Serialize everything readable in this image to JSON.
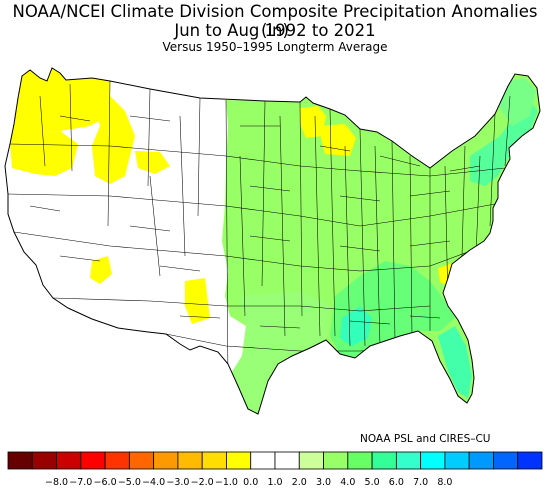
{
  "title_line1": "NOAA/NCEI Climate Division Composite Precipitation Anomalies (in)",
  "title_line2": "Jun to Aug 1992 to 2021",
  "title_line3": "Versus 1950–1995 Longterm Average",
  "credit": "NOAA PSL and CIRES–CU",
  "colors": {
    "no_data": "#ffffff",
    "outline": "#000000",
    "state_fill_white": "#ffffff",
    "dry_yellow": "#ffff00",
    "wet_green_1": "#ccff99",
    "wet_green_2": "#99ff66",
    "wet_green_3": "#66ff66",
    "wet_teal": "#33ffcc"
  },
  "map": {
    "region": "Contiguous United States climate divisions",
    "dry_areas_yellow": [
      "Pacific Northwest",
      "Idaho",
      "Arizona",
      "New Mexico",
      "Minnesota",
      "Wisconsin",
      "South Carolina"
    ],
    "wet_areas_green": [
      "Great Plains",
      "Midwest",
      "South",
      "Southeast",
      "Northeast"
    ],
    "wettest_areas_teal": [
      "Lower Mississippi Valley",
      "Florida",
      "Northern New England"
    ]
  },
  "legend": {
    "bins": [
      {
        "color": "#660000"
      },
      {
        "color": "#990000"
      },
      {
        "color": "#cc0000"
      },
      {
        "color": "#ff0000"
      },
      {
        "color": "#ff3300"
      },
      {
        "color": "#ff6600"
      },
      {
        "color": "#ff9900"
      },
      {
        "color": "#ffbb00"
      },
      {
        "color": "#ffdd00"
      },
      {
        "color": "#ffff00"
      },
      {
        "color": "#ffffff"
      },
      {
        "color": "#ffffff"
      },
      {
        "color": "#ccff99"
      },
      {
        "color": "#99ff66"
      },
      {
        "color": "#66ff66"
      },
      {
        "color": "#33ff99"
      },
      {
        "color": "#33ffcc"
      },
      {
        "color": "#00ffff"
      },
      {
        "color": "#00ccff"
      },
      {
        "color": "#0099ff"
      },
      {
        "color": "#0066ff"
      },
      {
        "color": "#0033ff"
      }
    ],
    "labels": [
      "−8.0",
      "−7.0",
      "−6.0",
      "−5.0",
      "−4.0",
      "−3.0",
      "−2.0",
      "−1.0",
      "0.0",
      "1.0",
      "2.0",
      "3.0",
      "4.0",
      "5.0",
      "6.0",
      "7.0",
      "8.0"
    ]
  }
}
